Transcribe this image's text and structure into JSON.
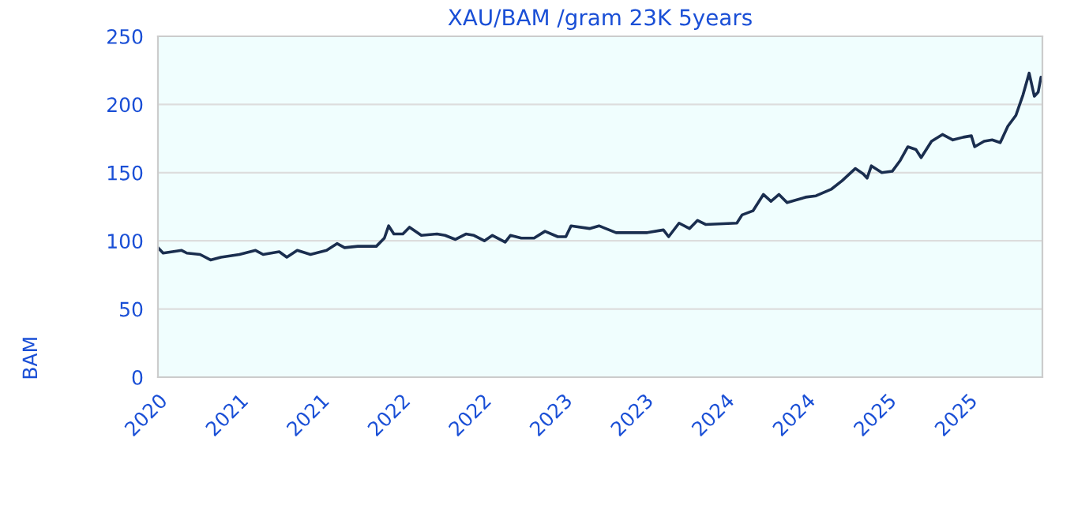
{
  "chart_data": {
    "type": "line",
    "title": "XAU/BAM /gram 23K 5years",
    "ylabel": "BAM",
    "x": [
      "2020-10-20",
      "2020-10-31",
      "2020-12-09",
      "2020-12-20",
      "2021-01-17",
      "2021-02-08",
      "2021-03-02",
      "2021-04-10",
      "2021-05-14",
      "2021-05-30",
      "2021-07-03",
      "2021-07-19",
      "2021-08-10",
      "2021-09-07",
      "2021-10-11",
      "2021-11-02",
      "2021-11-18",
      "2021-12-16",
      "2022-01-24",
      "2022-02-10",
      "2022-02-19",
      "2022-03-02",
      "2022-03-21",
      "2022-04-04",
      "2022-04-29",
      "2022-06-01",
      "2022-06-18",
      "2022-07-10",
      "2022-08-01",
      "2022-08-18",
      "2022-09-09",
      "2022-09-26",
      "2022-10-23",
      "2022-11-03",
      "2022-11-26",
      "2022-12-23",
      "2023-01-15",
      "2023-02-11",
      "2023-02-28",
      "2023-03-11",
      "2023-04-19",
      "2023-05-09",
      "2023-06-14",
      "2023-08-19",
      "2023-09-22",
      "2023-10-03",
      "2023-10-25",
      "2023-11-16",
      "2023-12-03",
      "2023-12-20",
      "2024-02-24",
      "2024-03-06",
      "2024-03-29",
      "2024-04-20",
      "2024-05-06",
      "2024-05-23",
      "2024-06-09",
      "2024-07-18",
      "2024-08-09",
      "2024-09-11",
      "2024-10-03",
      "2024-10-31",
      "2024-11-17",
      "2024-11-25",
      "2024-12-04",
      "2024-12-26",
      "2025-01-17",
      "2025-02-03",
      "2025-02-19",
      "2025-03-08",
      "2025-03-19",
      "2025-04-10",
      "2025-05-03",
      "2025-05-25",
      "2025-06-16",
      "2025-07-03",
      "2025-07-10",
      "2025-07-30",
      "2025-08-16",
      "2025-09-02",
      "2025-09-18",
      "2025-10-05",
      "2025-10-20",
      "2025-11-02",
      "2025-11-13",
      "2025-11-21",
      "2025-11-27"
    ],
    "series": [
      {
        "color": "#1a2e4f",
        "values": [
          95,
          91,
          93,
          91,
          90,
          86,
          88,
          90,
          93,
          90,
          92,
          88,
          93,
          90,
          93,
          98,
          95,
          96,
          96,
          102,
          111,
          105,
          105,
          110,
          104,
          105,
          104,
          101,
          105,
          104,
          100,
          104,
          99,
          104,
          102,
          102,
          107,
          103,
          103,
          111,
          109,
          111,
          106,
          106,
          108,
          103,
          113,
          109,
          115,
          112,
          113,
          119,
          122,
          134,
          129,
          134,
          128,
          132,
          133,
          138,
          144,
          153,
          149,
          146,
          155,
          150,
          151,
          159,
          169,
          167,
          161,
          173,
          178,
          174,
          176,
          177,
          169,
          173,
          174,
          172,
          184,
          192,
          207,
          223,
          206,
          209,
          220
        ]
      }
    ],
    "xlim": [
      "2020-10-20",
      "2025-11-30"
    ],
    "xticks": [
      {
        "value": "2020-10-20",
        "label": "2020"
      },
      {
        "value": "2021-04-09",
        "label": "2021"
      },
      {
        "value": "2021-09-27",
        "label": "2021"
      },
      {
        "value": "2022-03-17",
        "label": "2022"
      },
      {
        "value": "2022-09-04",
        "label": "2022"
      },
      {
        "value": "2023-02-22",
        "label": "2023"
      },
      {
        "value": "2023-08-12",
        "label": "2023"
      },
      {
        "value": "2024-01-30",
        "label": "2024"
      },
      {
        "value": "2024-07-19",
        "label": "2024"
      },
      {
        "value": "2025-01-06",
        "label": "2025"
      },
      {
        "value": "2025-06-26",
        "label": "2025"
      }
    ],
    "ylim": [
      0,
      250
    ],
    "yticks": [
      0,
      50,
      100,
      150,
      200,
      250
    ],
    "grid": "y"
  }
}
